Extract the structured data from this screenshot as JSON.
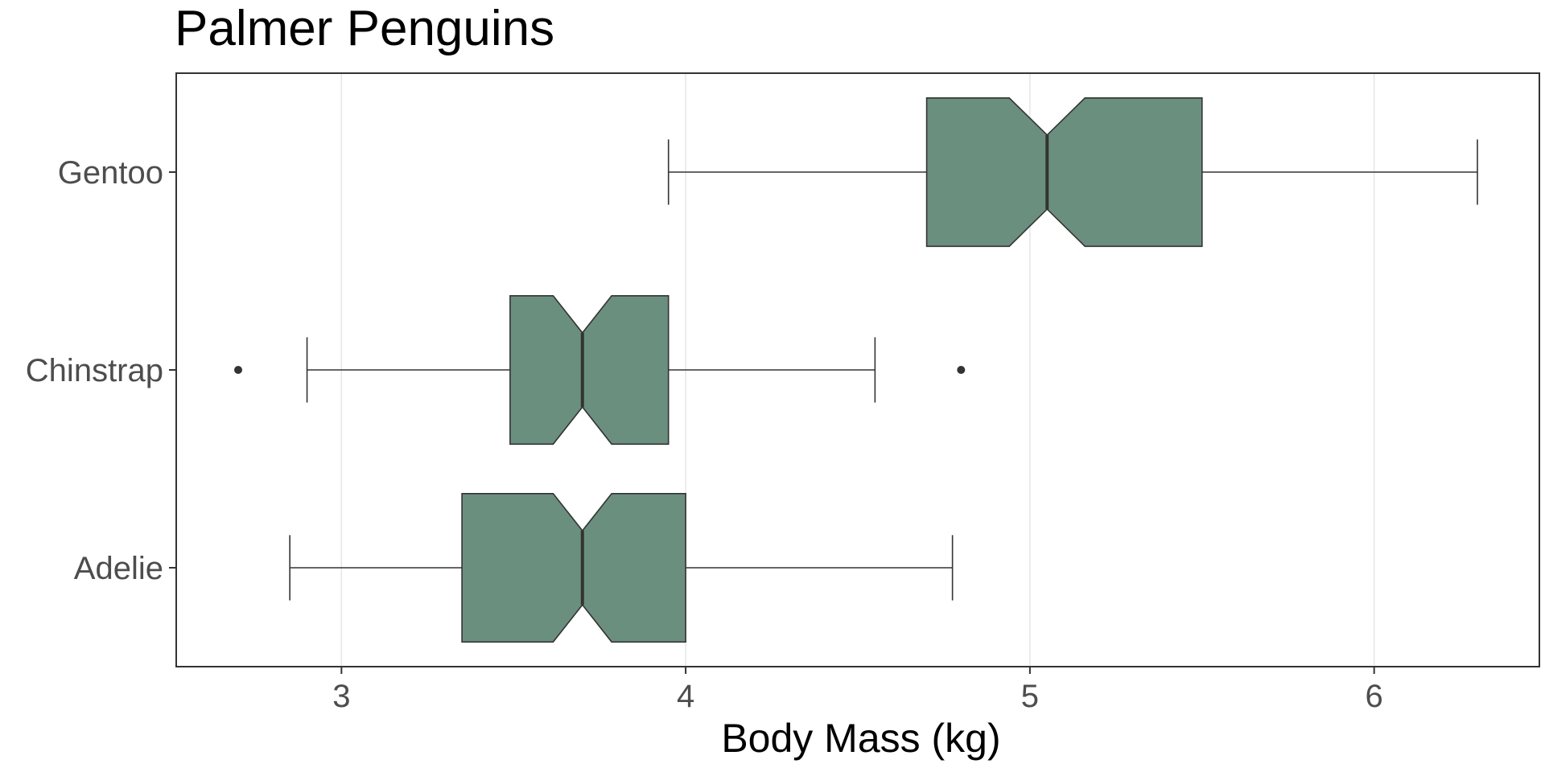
{
  "chart_data": {
    "type": "boxplot",
    "orientation": "horizontal",
    "notched": true,
    "title": "Palmer Penguins",
    "xlabel": "Body Mass (kg)",
    "ylabel": "",
    "xlim": [
      2.52,
      6.48
    ],
    "xticks": [
      3,
      4,
      5,
      6
    ],
    "categories": [
      "Adelie",
      "Chinstrap",
      "Gentoo"
    ],
    "grid": {
      "vertical": true,
      "horizontal": false
    },
    "legend": "none",
    "colors": {
      "box_fill": "#6b8f7e",
      "box_stroke": "#333333",
      "median": "#333333",
      "gridline": "#e6e6e6",
      "panel_border": "#333333",
      "outlier": "#333333"
    },
    "boxes": [
      {
        "category": "Adelie",
        "whisker_low": 2.85,
        "q1": 3.35,
        "median": 3.7,
        "q3": 4.0,
        "whisker_high": 4.775,
        "notch_low": 3.615,
        "notch_high": 3.785,
        "outliers": []
      },
      {
        "category": "Chinstrap",
        "whisker_low": 2.9,
        "q1": 3.49,
        "median": 3.7,
        "q3": 3.95,
        "whisker_high": 4.55,
        "notch_low": 3.615,
        "notch_high": 3.785,
        "outliers": [
          2.7,
          4.8
        ]
      },
      {
        "category": "Gentoo",
        "whisker_low": 3.95,
        "q1": 4.7,
        "median": 5.05,
        "q3": 5.5,
        "whisker_high": 6.3,
        "notch_low": 4.94,
        "notch_high": 5.16,
        "outliers": []
      }
    ]
  }
}
